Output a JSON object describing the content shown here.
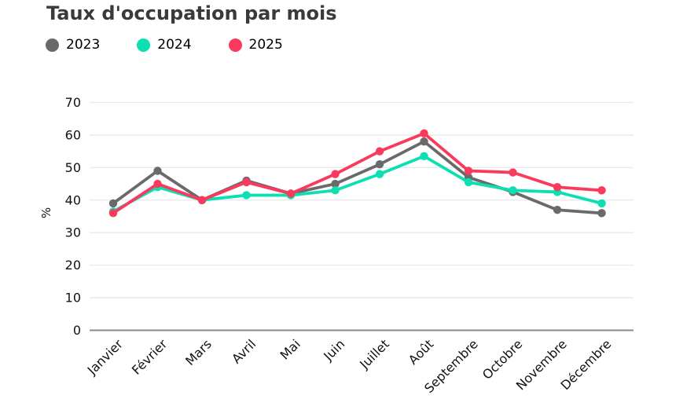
{
  "chart_data": {
    "type": "line",
    "title": "Taux d'occupation par mois",
    "xlabel": "",
    "ylabel": "%",
    "ylim": [
      0,
      70
    ],
    "yticks": [
      0,
      10,
      20,
      30,
      40,
      50,
      60,
      70
    ],
    "grid": "horizontal",
    "legend_position": "top-left",
    "categories": [
      "Janvier",
      "Février",
      "Mars",
      "Avril",
      "Mai",
      "Juin",
      "Juillet",
      "Août",
      "Septembre",
      "Octobre",
      "Novembre",
      "Décembre"
    ],
    "series": [
      {
        "name": "2023",
        "color": "#6a6a6a",
        "values": [
          39,
          49,
          40,
          46,
          42,
          45,
          51,
          58,
          47,
          42.5,
          37,
          36
        ]
      },
      {
        "name": "2024",
        "color": "#0cdfb1",
        "values": [
          36.5,
          44,
          40,
          41.5,
          41.5,
          43,
          48,
          53.5,
          45.5,
          43,
          42.5,
          39
        ]
      },
      {
        "name": "2025",
        "color": "#fa3a5c",
        "values": [
          36,
          45,
          40,
          45.5,
          42,
          48,
          55,
          60.5,
          49,
          48.5,
          44,
          43
        ]
      }
    ]
  },
  "colors": {
    "title_text": "#3a3a3a",
    "tick_text": "#111111",
    "gridline": "#e8e8e8",
    "axis_line": "#8a8a8a",
    "background": "#ffffff"
  }
}
